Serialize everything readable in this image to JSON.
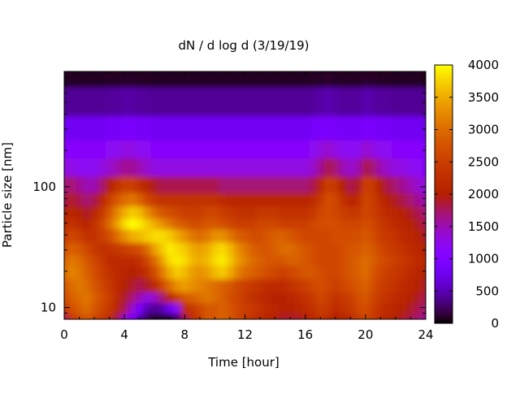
{
  "chart_data": {
    "type": "heatmap",
    "title": "dN / d log d (3/19/19)",
    "xlabel": "Time [hour]",
    "ylabel": "Particle size [nm]",
    "xlim": [
      0,
      24
    ],
    "ylim": [
      8,
      900
    ],
    "y_scale": "log",
    "x_ticks": [
      0,
      4,
      8,
      12,
      16,
      20,
      24
    ],
    "y_ticks": [
      10,
      100
    ],
    "colorbar": {
      "min": 0,
      "max": 4000,
      "ticks": [
        0,
        500,
        1000,
        1500,
        2000,
        2500,
        3000,
        3500,
        4000
      ],
      "palette": "gnuplot-hot (black-purple-red-orange-yellow)"
    },
    "grid": false,
    "x": [
      0,
      0.5,
      1,
      1.5,
      2,
      2.5,
      3,
      3.5,
      4,
      4.5,
      5,
      5.5,
      6,
      6.5,
      7,
      7.5,
      8,
      8.5,
      9,
      9.5,
      10,
      10.5,
      11,
      11.5,
      12,
      12.5,
      13,
      13.5,
      14,
      14.5,
      15,
      15.5,
      16,
      16.5,
      17,
      17.5,
      18,
      18.5,
      19,
      19.5,
      20,
      20.5,
      21,
      21.5,
      22,
      22.5,
      23,
      23.5,
      24
    ],
    "y": [
      8,
      10,
      12,
      15,
      20,
      25,
      30,
      40,
      50,
      60,
      80,
      100,
      150,
      200,
      300,
      500,
      900
    ],
    "z": [
      [
        1800,
        2400,
        2600,
        2800,
        2600,
        2400,
        2200,
        1800,
        1400,
        1000,
        500,
        200,
        100,
        50,
        100,
        300,
        1800,
        2200,
        2500,
        2800,
        2800,
        2900,
        2800,
        2600,
        2400,
        2300,
        2200,
        2100,
        2000,
        1900,
        1900,
        1900,
        2000,
        2100,
        2300,
        2200,
        2000,
        2100,
        2200,
        2400,
        2600,
        2400,
        2200,
        2100,
        2000,
        1900,
        1800,
        1700,
        1600
      ],
      [
        2400,
        2700,
        2900,
        3000,
        2800,
        2600,
        2400,
        2100,
        1800,
        1400,
        900,
        500,
        400,
        500,
        800,
        1200,
        2200,
        2400,
        2600,
        2800,
        2800,
        2900,
        2800,
        2600,
        2500,
        2400,
        2300,
        2200,
        2100,
        2000,
        2000,
        2100,
        2200,
        2300,
        2500,
        2400,
        2200,
        2300,
        2400,
        2600,
        2700,
        2500,
        2300,
        2200,
        2100,
        2000,
        1900,
        1800,
        1700
      ],
      [
        2600,
        2900,
        3000,
        3100,
        2900,
        2700,
        2500,
        2200,
        1900,
        1700,
        1500,
        1300,
        1400,
        1700,
        2100,
        2500,
        2800,
        2900,
        3000,
        3100,
        3000,
        2900,
        2700,
        2600,
        2400,
        2300,
        2200,
        2100,
        2000,
        2000,
        2100,
        2200,
        2300,
        2400,
        2600,
        2500,
        2300,
        2400,
        2500,
        2700,
        2800,
        2600,
        2400,
        2300,
        2200,
        2100,
        2000,
        1900,
        1800
      ],
      [
        2800,
        3000,
        3100,
        3000,
        2800,
        2600,
        2400,
        2200,
        2000,
        1900,
        1800,
        1900,
        2200,
        2600,
        3000,
        3300,
        3400,
        3300,
        3200,
        3100,
        3000,
        2900,
        2800,
        2600,
        2500,
        2400,
        2300,
        2200,
        2200,
        2200,
        2300,
        2400,
        2500,
        2600,
        2700,
        2600,
        2500,
        2600,
        2700,
        2800,
        2900,
        2700,
        2500,
        2400,
        2300,
        2200,
        2100,
        2000,
        1900
      ],
      [
        3000,
        3200,
        3100,
        2900,
        2700,
        2500,
        2300,
        2200,
        2100,
        2000,
        2100,
        2300,
        2700,
        3100,
        3500,
        3700,
        3600,
        3400,
        3300,
        3400,
        3600,
        3700,
        3500,
        3200,
        3000,
        2900,
        2800,
        2700,
        2600,
        2500,
        2600,
        2700,
        2800,
        2800,
        2700,
        2600,
        2600,
        2700,
        2800,
        2900,
        3000,
        2800,
        2600,
        2500,
        2400,
        2300,
        2200,
        2100,
        2000
      ],
      [
        2900,
        3100,
        3000,
        2800,
        2600,
        2400,
        2200,
        2200,
        2200,
        2200,
        2300,
        2600,
        3000,
        3400,
        3800,
        3900,
        3800,
        3600,
        3500,
        3600,
        3800,
        3900,
        3700,
        3400,
        3200,
        3000,
        2900,
        2800,
        2800,
        2800,
        2900,
        2900,
        2800,
        2700,
        2600,
        2600,
        2600,
        2700,
        2800,
        2900,
        3000,
        2900,
        2700,
        2600,
        2500,
        2400,
        2300,
        2200,
        2100
      ],
      [
        2700,
        2900,
        2800,
        2600,
        2400,
        2300,
        2300,
        2400,
        2500,
        2600,
        2700,
        3000,
        3400,
        3700,
        3900,
        3800,
        3700,
        3500,
        3400,
        3500,
        3700,
        3800,
        3600,
        3300,
        3100,
        2900,
        2800,
        2800,
        2900,
        3000,
        3000,
        2900,
        2800,
        2700,
        2600,
        2600,
        2600,
        2700,
        2800,
        2800,
        2900,
        2800,
        2600,
        2500,
        2400,
        2300,
        2200,
        2100,
        2000
      ],
      [
        2400,
        2600,
        2500,
        2300,
        2300,
        2500,
        2700,
        3000,
        3300,
        3500,
        3600,
        3700,
        3800,
        3800,
        3700,
        3500,
        3300,
        3100,
        3000,
        3100,
        3300,
        3300,
        3100,
        2900,
        2800,
        2700,
        2700,
        2800,
        2900,
        2900,
        2800,
        2700,
        2600,
        2600,
        2600,
        2600,
        2700,
        2700,
        2700,
        2700,
        2800,
        2700,
        2500,
        2400,
        2300,
        2200,
        2100,
        2000,
        1900
      ],
      [
        2200,
        2300,
        2200,
        2100,
        2300,
        2600,
        3000,
        3400,
        3800,
        4000,
        3900,
        3700,
        3500,
        3300,
        3100,
        2900,
        2800,
        2700,
        2700,
        2800,
        2800,
        2700,
        2600,
        2500,
        2500,
        2500,
        2600,
        2600,
        2600,
        2500,
        2500,
        2500,
        2500,
        2600,
        2700,
        2700,
        2700,
        2600,
        2600,
        2600,
        2700,
        2600,
        2400,
        2300,
        2200,
        2100,
        2000,
        1900,
        1800
      ],
      [
        2000,
        2100,
        2000,
        1900,
        2100,
        2400,
        2800,
        3200,
        3500,
        3700,
        3600,
        3300,
        3000,
        2800,
        2700,
        2600,
        2500,
        2500,
        2500,
        2600,
        2600,
        2500,
        2400,
        2300,
        2300,
        2300,
        2400,
        2400,
        2400,
        2300,
        2300,
        2300,
        2300,
        2400,
        2600,
        2700,
        2600,
        2500,
        2400,
        2400,
        2600,
        2500,
        2300,
        2200,
        2100,
        2000,
        1900,
        1800,
        1700
      ],
      [
        1800,
        1900,
        1800,
        1700,
        1800,
        2100,
        2500,
        2800,
        3000,
        3100,
        2900,
        2600,
        2400,
        2300,
        2300,
        2300,
        2300,
        2300,
        2300,
        2300,
        2300,
        2200,
        2100,
        2100,
        2100,
        2100,
        2100,
        2100,
        2100,
        2100,
        2100,
        2100,
        2100,
        2200,
        2400,
        2700,
        2600,
        2300,
        2100,
        2200,
        2600,
        2500,
        2200,
        2000,
        1900,
        1800,
        1700,
        1600,
        1500
      ],
      [
        1700,
        1700,
        1600,
        1500,
        1500,
        1700,
        2000,
        2300,
        2500,
        2500,
        2300,
        2100,
        1900,
        1800,
        1800,
        1800,
        1800,
        1800,
        1800,
        1800,
        1800,
        1700,
        1700,
        1700,
        1700,
        1700,
        1700,
        1700,
        1700,
        1700,
        1700,
        1700,
        1700,
        1800,
        2100,
        2500,
        2400,
        2000,
        1800,
        1900,
        2500,
        2400,
        2000,
        1800,
        1700,
        1600,
        1500,
        1400,
        1300
      ],
      [
        1300,
        1300,
        1200,
        1200,
        1200,
        1300,
        1400,
        1500,
        1600,
        1600,
        1500,
        1400,
        1300,
        1300,
        1300,
        1300,
        1300,
        1300,
        1300,
        1300,
        1300,
        1300,
        1300,
        1300,
        1300,
        1300,
        1300,
        1300,
        1300,
        1300,
        1300,
        1300,
        1300,
        1400,
        1600,
        1800,
        1700,
        1500,
        1400,
        1500,
        1800,
        1700,
        1500,
        1400,
        1300,
        1300,
        1200,
        1200,
        1100
      ],
      [
        1100,
        1100,
        1100,
        1100,
        1100,
        1100,
        1200,
        1200,
        1300,
        1300,
        1200,
        1200,
        1100,
        1100,
        1100,
        1100,
        1100,
        1100,
        1100,
        1100,
        1100,
        1100,
        1100,
        1100,
        1100,
        1100,
        1100,
        1100,
        1100,
        1100,
        1100,
        1100,
        1100,
        1200,
        1300,
        1400,
        1300,
        1200,
        1200,
        1200,
        1400,
        1300,
        1200,
        1200,
        1100,
        1100,
        1100,
        1100,
        1000
      ],
      [
        800,
        800,
        800,
        800,
        800,
        800,
        850,
        850,
        900,
        900,
        850,
        850,
        800,
        800,
        800,
        800,
        800,
        800,
        800,
        800,
        800,
        800,
        800,
        800,
        800,
        800,
        800,
        800,
        800,
        800,
        800,
        800,
        800,
        850,
        900,
        950,
        900,
        850,
        850,
        850,
        950,
        900,
        850,
        850,
        800,
        800,
        800,
        800,
        750
      ],
      [
        400,
        400,
        400,
        400,
        400,
        400,
        420,
        420,
        450,
        450,
        420,
        420,
        400,
        400,
        400,
        400,
        400,
        400,
        400,
        400,
        400,
        400,
        400,
        400,
        400,
        400,
        400,
        400,
        400,
        400,
        400,
        400,
        400,
        420,
        450,
        480,
        450,
        420,
        420,
        420,
        480,
        450,
        420,
        420,
        400,
        400,
        400,
        400,
        380
      ],
      [
        80,
        80,
        80,
        80,
        80,
        80,
        90,
        90,
        100,
        100,
        90,
        90,
        80,
        80,
        80,
        80,
        80,
        80,
        80,
        80,
        80,
        80,
        80,
        80,
        80,
        80,
        80,
        80,
        80,
        80,
        80,
        80,
        80,
        90,
        100,
        110,
        100,
        90,
        90,
        90,
        110,
        100,
        90,
        90,
        80,
        80,
        80,
        80,
        70
      ]
    ]
  }
}
